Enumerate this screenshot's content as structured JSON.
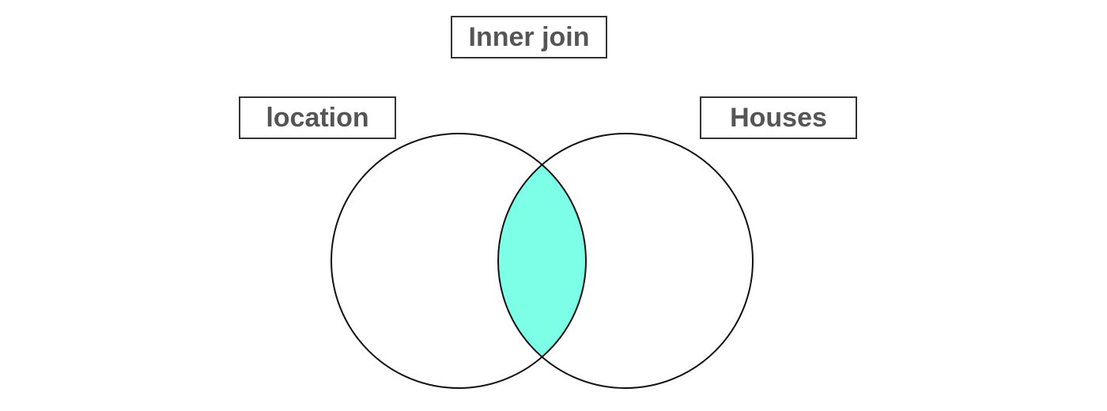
{
  "diagram": {
    "title": "Inner join",
    "left_set": {
      "label": "location"
    },
    "right_set": {
      "label": "Houses"
    },
    "highlight": {
      "region": "intersection",
      "color": "#7cfee7"
    },
    "colors": {
      "outline": "#111111",
      "label_text": "#555555",
      "label_border": "#333333"
    }
  }
}
